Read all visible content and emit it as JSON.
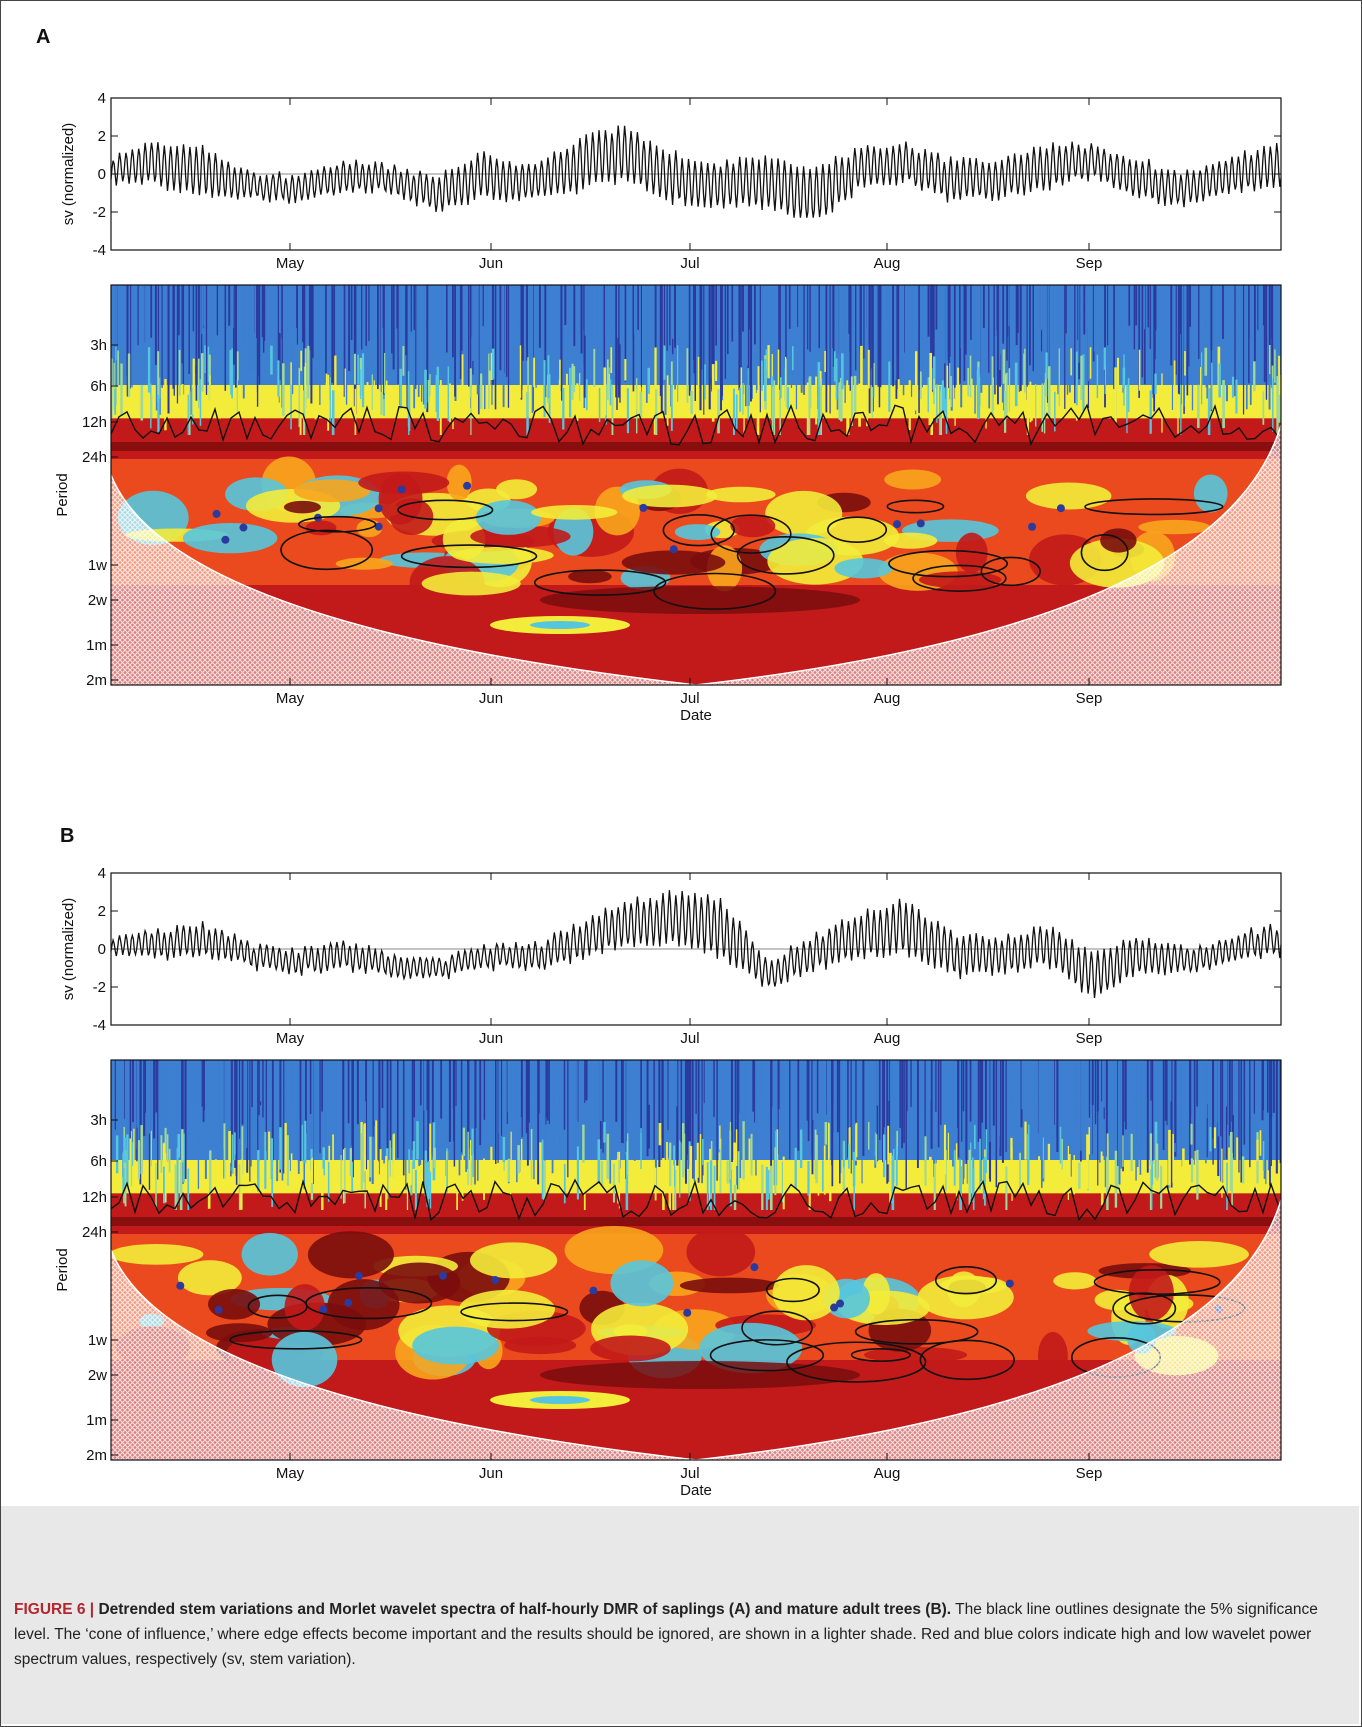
{
  "figure": {
    "panel_labels": [
      "A",
      "B"
    ],
    "caption": {
      "label": "FIGURE 6 |",
      "title": "Detrended stem variations and Morlet wavelet spectra of half-hourly DMR of saplings (A) and mature adult trees (B).",
      "text": "The black line outlines designate the 5% significance level. The ‘cone of influence,’ where edge effects become important and the results should be ignored, are shown in a lighter shade. Red and blue colors indicate high and low wavelet power spectrum values, respectively (sv, stem variation)."
    }
  },
  "chart_data": [
    {
      "panel": "A",
      "type": "line",
      "title": "",
      "xlabel": "",
      "ylabel": "sv (normalized)",
      "x_ticks": [
        "May",
        "Jun",
        "Jul",
        "Aug",
        "Sep"
      ],
      "y_ticks": [
        "4",
        "2",
        "0",
        "-2",
        "-4"
      ],
      "ylim": [
        -4,
        4
      ],
      "zero_line": true,
      "series": [
        {
          "daily_amplitude_profile": [
            0.9,
            1.6,
            1.8,
            0.9,
            1.0,
            1.1,
            1.0,
            1.3,
            1.7,
            1.2,
            1.9,
            2.0,
            1.8,
            1.6,
            1.9,
            2.1,
            1.5,
            1.4,
            1.5,
            1.4,
            1.6,
            1.2,
            1.4,
            1.2,
            1.3,
            1.6
          ],
          "baseline_profile": [
            0.2,
            0.6,
            0.1,
            -0.6,
            -0.8,
            -0.2,
            -0.3,
            -1.0,
            -0.1,
            -0.5,
            0.5,
            1.0,
            -0.2,
            -0.6,
            -0.4,
            -1.2,
            0.3,
            0.6,
            -0.4,
            -0.3,
            0.4,
            0.7,
            -0.3,
            -0.8,
            0.1,
            0.4
          ],
          "range": [
            -2.3,
            2.6
          ]
        }
      ]
    },
    {
      "panel": "A",
      "type": "heatmap",
      "title": "",
      "xlabel": "Date",
      "ylabel": "Period",
      "x_ticks": [
        "May",
        "Jun",
        "Jul",
        "Aug",
        "Sep"
      ],
      "y_ticks": [
        "3h",
        "6h",
        "12h",
        "24h",
        "1w",
        "2w",
        "1m",
        "2m"
      ],
      "colorscale": [
        "#2a3a9e",
        "#3d7fd0",
        "#56c6de",
        "#9ed89a",
        "#f3ec3a",
        "#f8a51d",
        "#ea4a1d",
        "#c21a1a",
        "#7a0d0d"
      ],
      "significance_level": "5%",
      "cone_of_influence": true
    },
    {
      "panel": "B",
      "type": "line",
      "title": "",
      "xlabel": "",
      "ylabel": "sv (normalized)",
      "x_ticks": [
        "May",
        "Jun",
        "Jul",
        "Aug",
        "Sep"
      ],
      "y_ticks": [
        "4",
        "2",
        "0",
        "-2",
        "-4"
      ],
      "ylim": [
        -4,
        4
      ],
      "zero_line": true,
      "series": [
        {
          "daily_amplitude_profile": [
            0.6,
            1.0,
            1.2,
            0.8,
            0.9,
            1.0,
            0.8,
            0.7,
            0.8,
            0.9,
            1.3,
            1.6,
            1.9,
            2.2,
            1.0,
            1.2,
            1.6,
            2.0,
            1.5,
            1.3,
            1.4,
            1.7,
            1.3,
            0.9,
            0.9,
            1.1
          ],
          "baseline_profile": [
            0.2,
            0.3,
            0.4,
            -0.3,
            -0.7,
            -0.3,
            -0.9,
            -1.1,
            -0.4,
            -0.5,
            0.4,
            1.4,
            1.6,
            1.2,
            -1.3,
            -0.2,
            0.7,
            1.2,
            -0.3,
            -0.4,
            0.2,
            -1.3,
            -0.3,
            -0.6,
            0.1,
            0.5
          ],
          "range": [
            -2.7,
            3.6
          ]
        }
      ]
    },
    {
      "panel": "B",
      "type": "heatmap",
      "title": "",
      "xlabel": "Date",
      "ylabel": "Period",
      "x_ticks": [
        "May",
        "Jun",
        "Jul",
        "Aug",
        "Sep"
      ],
      "y_ticks": [
        "3h",
        "6h",
        "12h",
        "24h",
        "1w",
        "2w",
        "1m",
        "2m"
      ],
      "colorscale": [
        "#2a3a9e",
        "#3d7fd0",
        "#56c6de",
        "#9ed89a",
        "#f3ec3a",
        "#f8a51d",
        "#ea4a1d",
        "#c21a1a",
        "#7a0d0d"
      ],
      "significance_level": "5%",
      "cone_of_influence": true
    }
  ]
}
